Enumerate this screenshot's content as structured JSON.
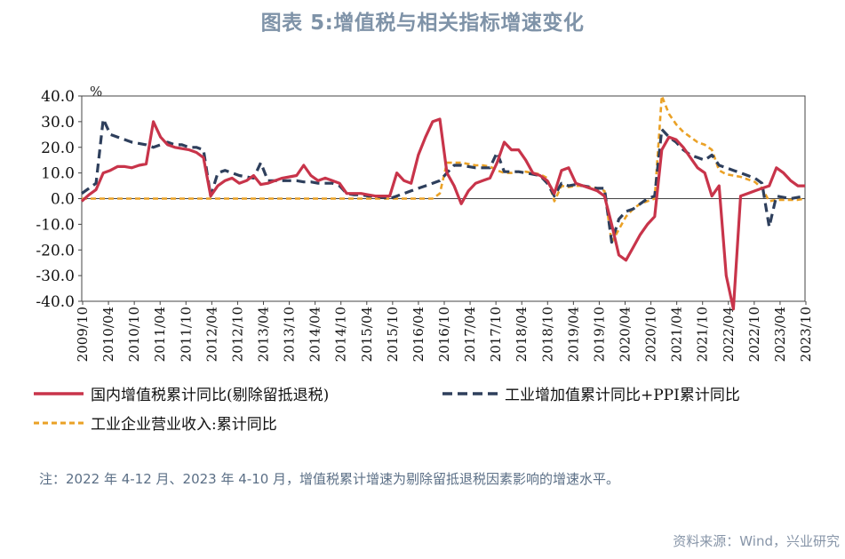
{
  "title": "图表 5:增值税与相关指标增速变化",
  "note": "注：2022 年 4-12 月、2023 年 4-10 月，增值税累计增速为剔除留抵退税因素影响的增速水平。",
  "source": "资料来源：Wind，兴业研究",
  "chart_data": {
    "type": "line",
    "unit_label": "%",
    "ylim": [
      -40,
      40
    ],
    "yticks": [
      "40.0",
      "30.0",
      "20.0",
      "10.0",
      "0.0",
      "-10.0",
      "-20.0",
      "-30.0",
      "-40.0"
    ],
    "xticks": [
      "2009/10",
      "2010/04",
      "2010/10",
      "2011/04",
      "2011/10",
      "2012/04",
      "2012/10",
      "2013/04",
      "2013/10",
      "2014/04",
      "2014/10",
      "2015/04",
      "2015/10",
      "2016/04",
      "2016/10",
      "2017/04",
      "2017/10",
      "2018/04",
      "2018/10",
      "2019/04",
      "2019/10",
      "2020/04",
      "2020/10",
      "2021/04",
      "2021/10",
      "2022/04",
      "2022/10",
      "2023/04",
      "2023/10"
    ],
    "legend_position": "bottom",
    "series": [
      {
        "name": "国内增值税累计同比(剔除留抵退税)",
        "color": "#c8344a",
        "dash": "solid",
        "points": [
          [
            0,
            -1
          ],
          [
            1,
            1.5
          ],
          [
            2,
            3.5
          ],
          [
            3,
            10
          ],
          [
            4,
            11
          ],
          [
            5,
            12.5
          ],
          [
            6,
            12.5
          ],
          [
            7,
            12
          ],
          [
            8,
            13
          ],
          [
            9,
            13.5
          ],
          [
            10,
            30
          ],
          [
            11,
            24
          ],
          [
            12,
            21
          ],
          [
            13,
            20
          ],
          [
            14,
            19.5
          ],
          [
            15,
            19
          ],
          [
            16,
            18
          ],
          [
            17,
            16
          ],
          [
            18,
            1
          ],
          [
            19,
            5
          ],
          [
            20,
            7
          ],
          [
            21,
            8
          ],
          [
            22,
            6
          ],
          [
            23,
            7
          ],
          [
            24,
            9
          ],
          [
            25,
            5.5
          ],
          [
            26,
            6
          ],
          [
            27,
            7
          ],
          [
            28,
            8
          ],
          [
            29,
            8.5
          ],
          [
            30,
            9
          ],
          [
            31,
            13
          ],
          [
            32,
            9
          ],
          [
            33,
            7
          ],
          [
            34,
            8
          ],
          [
            35,
            7
          ],
          [
            36,
            6
          ],
          [
            37,
            2
          ],
          [
            38,
            2
          ],
          [
            39,
            2
          ],
          [
            40,
            1.5
          ],
          [
            41,
            1
          ],
          [
            42,
            1
          ],
          [
            43,
            1
          ],
          [
            44,
            10
          ],
          [
            45,
            7
          ],
          [
            46,
            6
          ],
          [
            47,
            17
          ],
          [
            48,
            24
          ],
          [
            49,
            30
          ],
          [
            50,
            31
          ],
          [
            51,
            10
          ],
          [
            52,
            5
          ],
          [
            53,
            -2
          ],
          [
            54,
            3
          ],
          [
            55,
            6
          ],
          [
            56,
            7
          ],
          [
            57,
            8
          ],
          [
            58,
            14
          ],
          [
            59,
            22
          ],
          [
            60,
            19
          ],
          [
            61,
            19
          ],
          [
            62,
            15
          ],
          [
            63,
            10
          ],
          [
            64,
            9
          ],
          [
            65,
            7
          ],
          [
            66,
            2
          ],
          [
            67,
            11
          ],
          [
            68,
            12
          ],
          [
            69,
            6
          ],
          [
            70,
            5
          ],
          [
            71,
            4
          ],
          [
            72,
            3
          ],
          [
            73,
            1
          ],
          [
            74,
            -10
          ],
          [
            75,
            -22
          ],
          [
            76,
            -24
          ],
          [
            77,
            -19
          ],
          [
            78,
            -14
          ],
          [
            79,
            -10
          ],
          [
            80,
            -7
          ],
          [
            81,
            19
          ],
          [
            82,
            24
          ],
          [
            83,
            23
          ],
          [
            84,
            20
          ],
          [
            85,
            16
          ],
          [
            86,
            12
          ],
          [
            87,
            10
          ],
          [
            88,
            1
          ],
          [
            89,
            5
          ],
          [
            90,
            -30
          ],
          [
            91,
            -45
          ],
          [
            92,
            1
          ],
          [
            93,
            2
          ],
          [
            94,
            3
          ],
          [
            95,
            4
          ],
          [
            96,
            5
          ],
          [
            97,
            12
          ],
          [
            98,
            10
          ],
          [
            99,
            7
          ],
          [
            100,
            5
          ],
          [
            101,
            5
          ]
        ]
      },
      {
        "name": "工业增加值累计同比+PPI累计同比",
        "color": "#2e3f5c",
        "dash": "dashed",
        "points": [
          [
            0,
            2
          ],
          [
            1,
            4
          ],
          [
            2,
            6
          ],
          [
            3,
            31
          ],
          [
            4,
            25
          ],
          [
            5,
            24
          ],
          [
            6,
            23
          ],
          [
            7,
            22
          ],
          [
            8,
            21.5
          ],
          [
            9,
            21
          ],
          [
            10,
            20
          ],
          [
            11,
            21
          ],
          [
            12,
            22
          ],
          [
            13,
            21
          ],
          [
            14,
            21
          ],
          [
            15,
            20
          ],
          [
            16,
            20
          ],
          [
            17,
            19
          ],
          [
            18,
            1
          ],
          [
            19,
            10
          ],
          [
            20,
            11
          ],
          [
            21,
            10
          ],
          [
            22,
            9
          ],
          [
            23,
            8.5
          ],
          [
            24,
            8
          ],
          [
            25,
            14
          ],
          [
            26,
            7
          ],
          [
            27,
            7
          ],
          [
            28,
            7
          ],
          [
            29,
            7
          ],
          [
            30,
            7
          ],
          [
            31,
            6.5
          ],
          [
            32,
            6.5
          ],
          [
            33,
            6
          ],
          [
            34,
            6
          ],
          [
            35,
            6
          ],
          [
            36,
            5
          ],
          [
            37,
            2
          ],
          [
            38,
            1.5
          ],
          [
            39,
            1.5
          ],
          [
            40,
            1
          ],
          [
            41,
            1
          ],
          [
            42,
            0.5
          ],
          [
            43,
            0
          ],
          [
            44,
            1
          ],
          [
            45,
            2
          ],
          [
            46,
            3
          ],
          [
            47,
            4
          ],
          [
            48,
            5
          ],
          [
            49,
            6
          ],
          [
            50,
            7
          ],
          [
            51,
            10
          ],
          [
            52,
            13
          ],
          [
            53,
            13
          ],
          [
            54,
            12.5
          ],
          [
            55,
            12
          ],
          [
            56,
            12
          ],
          [
            57,
            12
          ],
          [
            58,
            18
          ],
          [
            59,
            10.5
          ],
          [
            60,
            10.5
          ],
          [
            61,
            10.5
          ],
          [
            62,
            10
          ],
          [
            63,
            9.5
          ],
          [
            64,
            9
          ],
          [
            65,
            6
          ],
          [
            66,
            1
          ],
          [
            67,
            6
          ],
          [
            68,
            5
          ],
          [
            69,
            5.5
          ],
          [
            70,
            5
          ],
          [
            71,
            4.5
          ],
          [
            72,
            4
          ],
          [
            73,
            4
          ],
          [
            74,
            -17
          ],
          [
            75,
            -8
          ],
          [
            76,
            -5
          ],
          [
            77,
            -4
          ],
          [
            78,
            -2
          ],
          [
            79,
            0
          ],
          [
            80,
            1
          ],
          [
            81,
            27
          ],
          [
            82,
            24
          ],
          [
            83,
            22
          ],
          [
            84,
            19
          ],
          [
            85,
            17
          ],
          [
            86,
            16
          ],
          [
            87,
            15
          ],
          [
            88,
            17
          ],
          [
            89,
            13
          ],
          [
            90,
            12
          ],
          [
            91,
            11
          ],
          [
            92,
            10
          ],
          [
            93,
            9
          ],
          [
            94,
            8
          ],
          [
            95,
            6
          ],
          [
            96,
            -11
          ],
          [
            97,
            1
          ],
          [
            98,
            0.5
          ],
          [
            99,
            0
          ],
          [
            100,
            0.5
          ],
          [
            101,
            1
          ]
        ]
      },
      {
        "name": "工业企业营业收入:累计同比",
        "color": "#eaa126",
        "dash": "dashed",
        "points": [
          [
            0,
            0
          ],
          [
            5,
            0
          ],
          [
            10,
            0
          ],
          [
            15,
            0
          ],
          [
            20,
            0
          ],
          [
            25,
            0
          ],
          [
            30,
            0
          ],
          [
            35,
            0
          ],
          [
            40,
            0
          ],
          [
            45,
            0
          ],
          [
            49,
            0
          ],
          [
            50,
            2
          ],
          [
            51,
            14
          ],
          [
            52,
            14
          ],
          [
            53,
            14
          ],
          [
            54,
            13.5
          ],
          [
            55,
            13
          ],
          [
            56,
            13
          ],
          [
            57,
            12.5
          ],
          [
            58,
            11
          ],
          [
            59,
            10
          ],
          [
            60,
            10
          ],
          [
            61,
            10.5
          ],
          [
            62,
            10.5
          ],
          [
            63,
            10
          ],
          [
            64,
            9.5
          ],
          [
            65,
            8
          ],
          [
            66,
            -1
          ],
          [
            67,
            5
          ],
          [
            68,
            4.5
          ],
          [
            69,
            5
          ],
          [
            70,
            5
          ],
          [
            71,
            4.5
          ],
          [
            72,
            4
          ],
          [
            73,
            3
          ],
          [
            74,
            -17
          ],
          [
            75,
            -12
          ],
          [
            76,
            -7
          ],
          [
            77,
            -4
          ],
          [
            78,
            -2
          ],
          [
            79,
            -1
          ],
          [
            80,
            0
          ],
          [
            81,
            40
          ],
          [
            82,
            33
          ],
          [
            83,
            29
          ],
          [
            84,
            26
          ],
          [
            85,
            24
          ],
          [
            86,
            22
          ],
          [
            87,
            21
          ],
          [
            88,
            19
          ],
          [
            89,
            11
          ],
          [
            90,
            9.5
          ],
          [
            91,
            9
          ],
          [
            92,
            8.5
          ],
          [
            93,
            7.5
          ],
          [
            94,
            6.5
          ],
          [
            95,
            4
          ],
          [
            96,
            -1
          ],
          [
            97,
            -0.5
          ],
          [
            98,
            -0.5
          ],
          [
            99,
            -0.5
          ],
          [
            100,
            -0.5
          ],
          [
            101,
            0
          ]
        ]
      }
    ]
  }
}
